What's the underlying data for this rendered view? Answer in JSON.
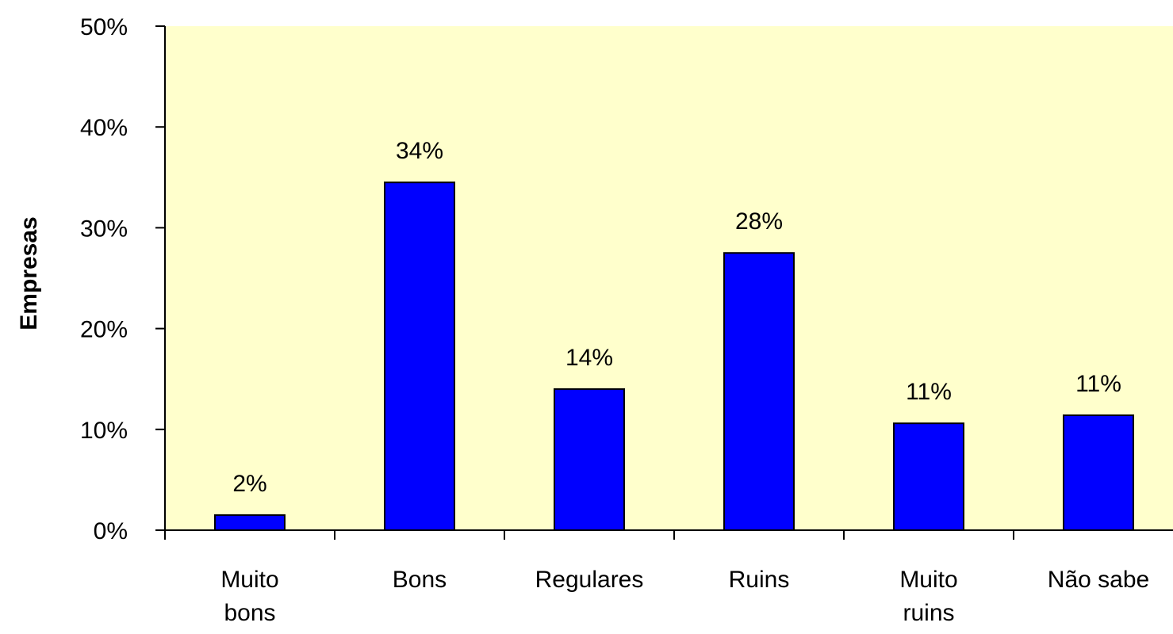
{
  "chart_data": {
    "type": "bar",
    "ylabel": "Empresas",
    "xlabel": "",
    "title": "",
    "categories": [
      [
        "Muito",
        "bons"
      ],
      [
        "Bons"
      ],
      [
        "Regulares"
      ],
      [
        "Ruins"
      ],
      [
        "Muito",
        "ruins"
      ],
      [
        "Não sabe"
      ]
    ],
    "values": [
      1.5,
      34.5,
      14,
      27.5,
      10.6,
      11.4
    ],
    "data_labels": [
      "2%",
      "34%",
      "14%",
      "28%",
      "11%",
      "11%"
    ],
    "y_ticks": [
      "0%",
      "10%",
      "20%",
      "30%",
      "40%",
      "50%"
    ],
    "ylim": [
      0,
      50
    ],
    "grid": false,
    "legend": "none",
    "colors": {
      "bar_fill": "#0000ff",
      "bar_stroke": "#000000",
      "plot_background": "#ffffcc",
      "axis": "#000000"
    }
  }
}
